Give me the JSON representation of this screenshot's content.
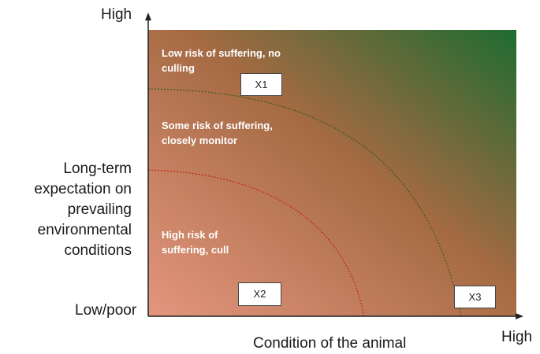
{
  "axes": {
    "y_high": "High",
    "y_low": "Low/poor",
    "y_title": [
      "Long-term",
      "expectation on",
      "prevailing",
      "environmental",
      "conditions"
    ],
    "x_title": "Condition of the animal",
    "x_high": "High"
  },
  "zones": {
    "low_risk": [
      "Low risk of suffering, no",
      "culling"
    ],
    "some_risk": [
      "Some risk of suffering,",
      "closely monitor"
    ],
    "high_risk": [
      "High risk of",
      "suffering, cull"
    ]
  },
  "markers": [
    "X1",
    "X2",
    "X3"
  ],
  "colors": {
    "low_corner": "#e4967e",
    "mid": "#a56a43",
    "high_corner": "#1e6b30",
    "green_line": "#2f5a16",
    "red_line": "#c22418"
  }
}
